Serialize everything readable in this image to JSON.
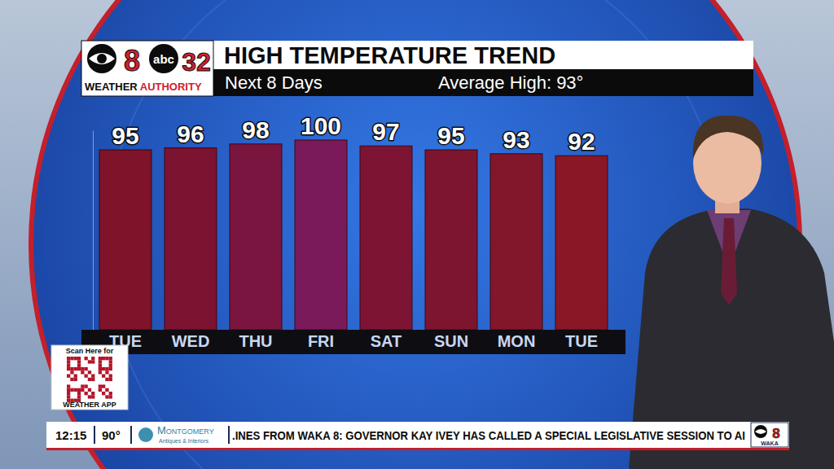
{
  "chart_data": {
    "type": "bar",
    "title": "HIGH TEMPERATURE TREND",
    "subtitle": "Next 8 Days",
    "annotations": [
      "Average High: 93°"
    ],
    "categories": [
      "TUE",
      "WED",
      "THU",
      "FRI",
      "SAT",
      "SUN",
      "MON",
      "TUE"
    ],
    "values": [
      95,
      96,
      98,
      100,
      97,
      95,
      93,
      92
    ],
    "colors": [
      "#7e1329",
      "#7c1330",
      "#7a1540",
      "#7a1a5a",
      "#7d1434",
      "#7d152e",
      "#82162a",
      "#8a1726"
    ],
    "ylim": [
      3,
      105
    ],
    "data_labels": true,
    "tick_labels": "x",
    "grid": false
  },
  "page": {
    "logo": {
      "left_number": "8",
      "network": "abc",
      "right_number": "32",
      "weather": "WEATHER",
      "authority": "AUTHORITY"
    },
    "qr": {
      "top": "Scan Here for",
      "bottom": "WEATHER APP"
    },
    "ticker": {
      "time": "12:15",
      "temperature": "90°",
      "sponsor": "Montgomery",
      "sponsor_tagline": "Antiques & Interiors",
      "headline": ".INES FROM WAKA 8: GOVERNOR KAY IVEY HAS CALLED A SPECIAL LEGISLATIVE SESSION TO AI",
      "station_number": "8",
      "station": "WAKA"
    }
  }
}
